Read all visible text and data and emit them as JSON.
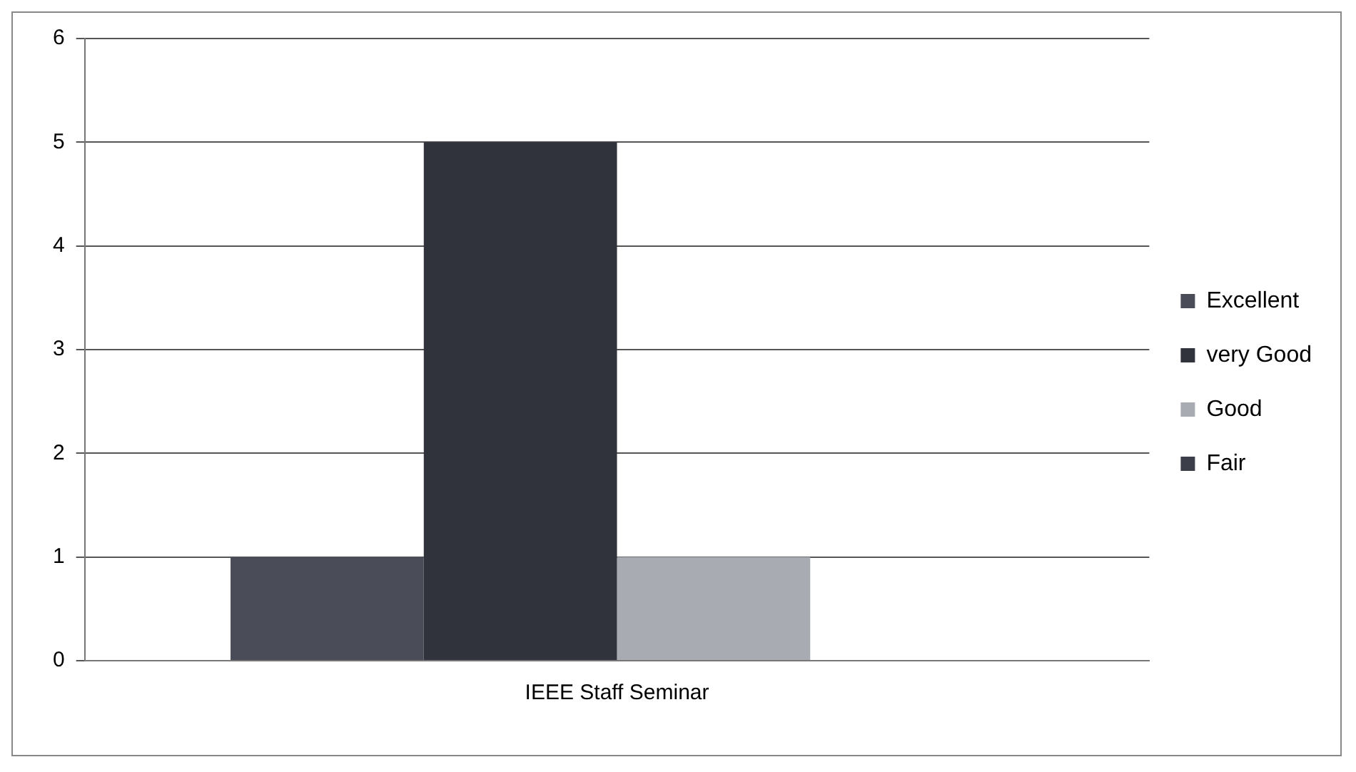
{
  "chart_data": {
    "type": "bar",
    "categories": [
      "IEEE Staff Seminar"
    ],
    "series": [
      {
        "name": "Excellent",
        "color": "#4a4c58",
        "values": [
          1
        ]
      },
      {
        "name": "very Good",
        "color": "#30323c",
        "values": [
          5
        ]
      },
      {
        "name": "Good",
        "color": "#a9abb2",
        "values": [
          1
        ]
      },
      {
        "name": "Fair",
        "color": "#3c3e4a",
        "values": [
          0
        ]
      }
    ],
    "ylim": [
      0,
      6
    ],
    "yticks": [
      0,
      1,
      2,
      3,
      4,
      5,
      6
    ],
    "grid": "y",
    "legend": "right"
  }
}
